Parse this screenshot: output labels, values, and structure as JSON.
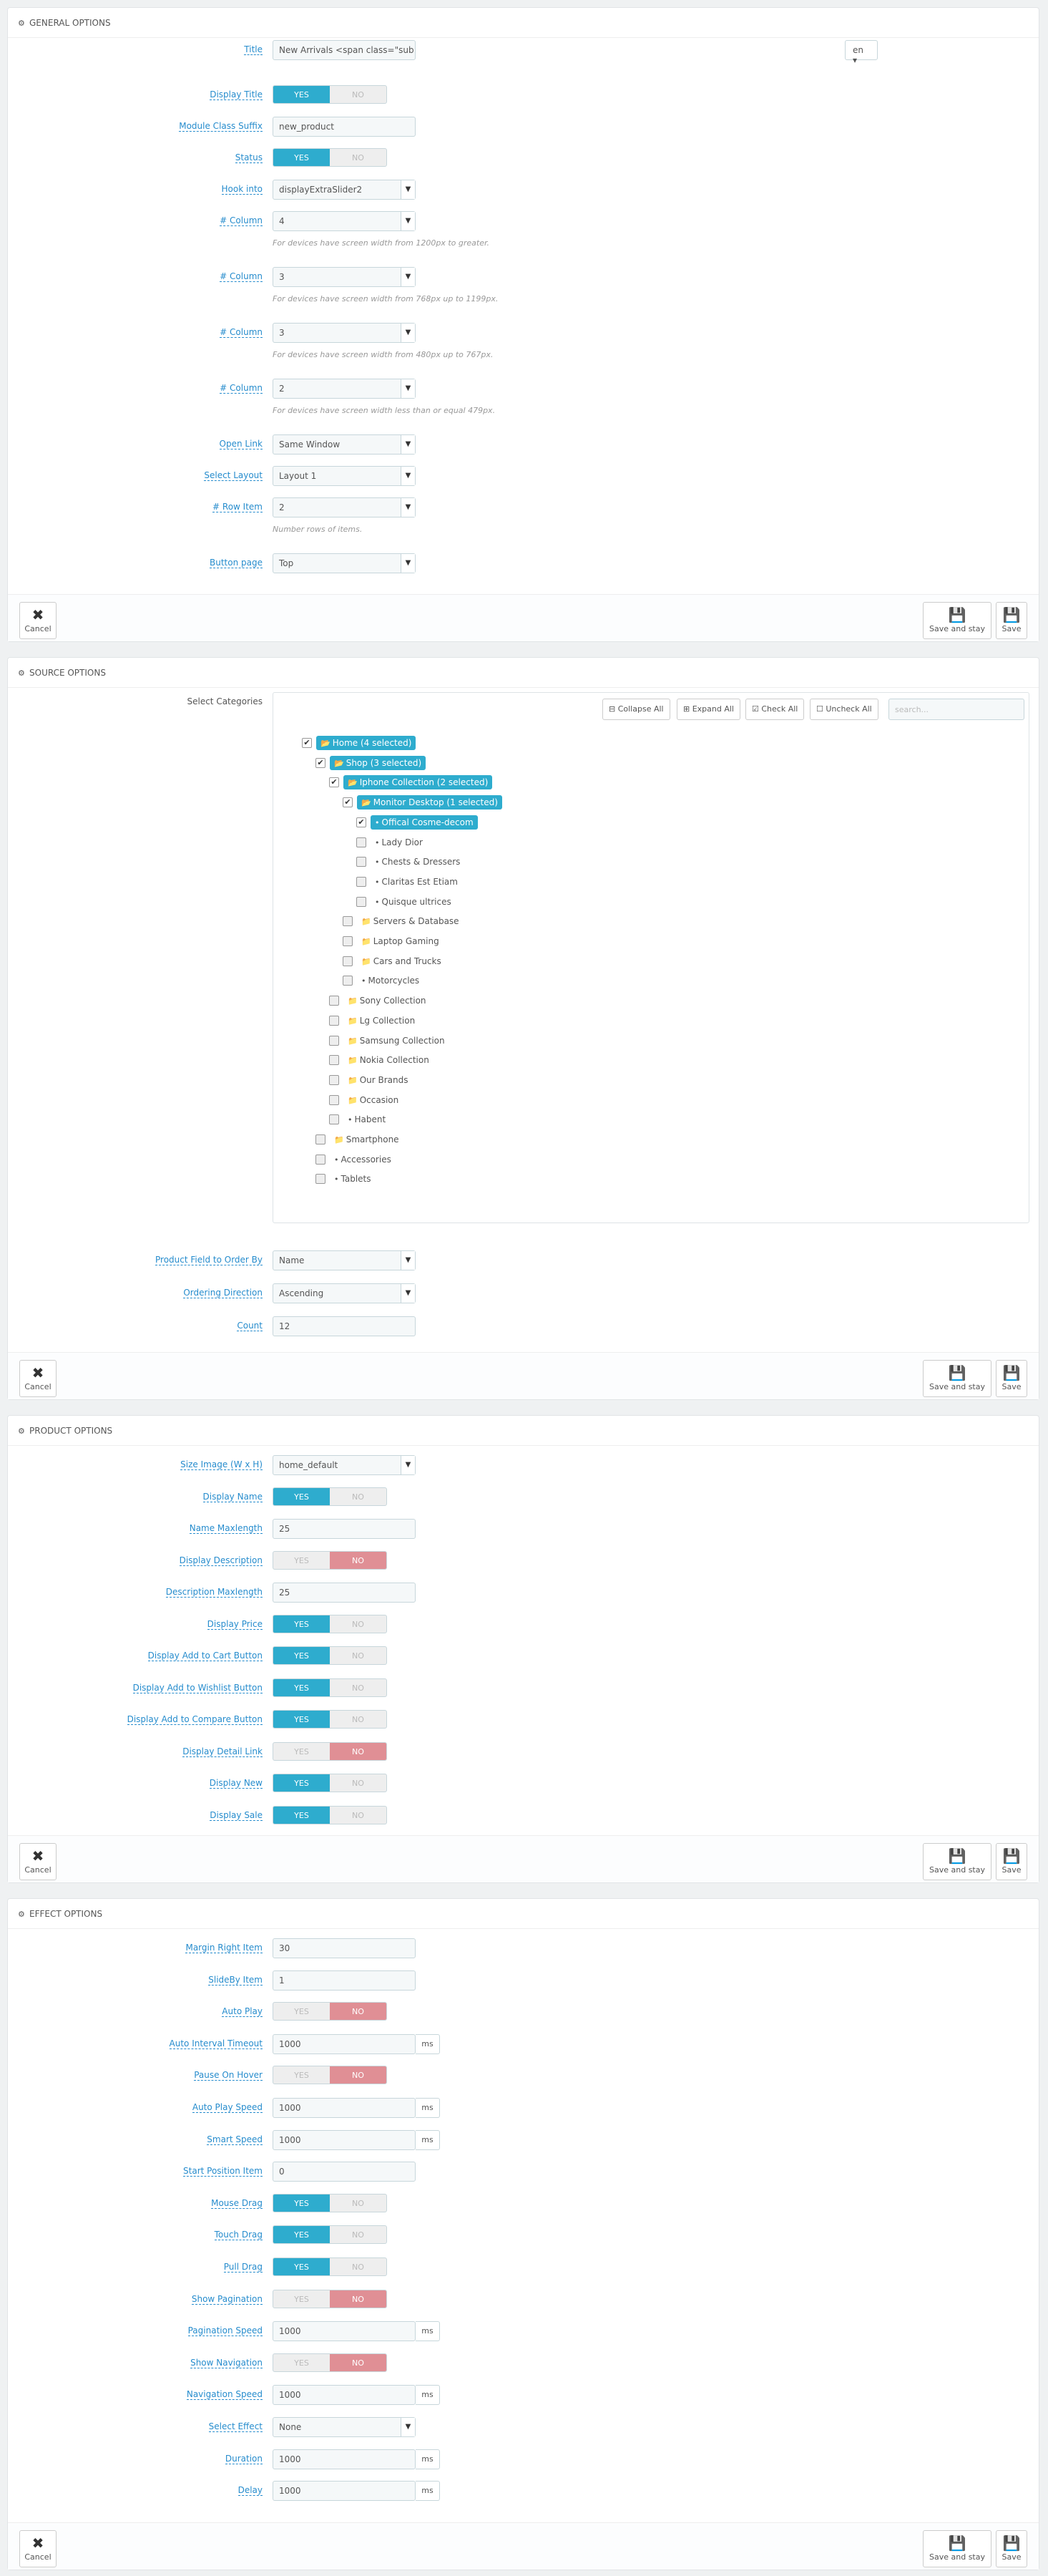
{
  "general": {
    "heading": "GENERAL OPTIONS",
    "lang": "en",
    "title": {
      "label": "Title",
      "value": "New Arrivals <span class=\"sub"
    },
    "display_title": {
      "label": "Display Title",
      "yes": "YES",
      "no": "NO",
      "value": "yes"
    },
    "module_class_suffix": {
      "label": "Module Class Suffix",
      "value": "new_product"
    },
    "status": {
      "label": "Status",
      "yes": "YES",
      "no": "NO",
      "value": "yes"
    },
    "hook_into": {
      "label": "Hook into",
      "value": "displayExtraSlider2"
    },
    "columns": [
      {
        "label": "# Column",
        "value": "4",
        "help": "For devices have screen width from 1200px to greater."
      },
      {
        "label": "# Column",
        "value": "3",
        "help": "For devices have screen width from 768px up to 1199px."
      },
      {
        "label": "# Column",
        "value": "3",
        "help": "For devices have screen width from 480px up to 767px."
      },
      {
        "label": "# Column",
        "value": "2",
        "help": "For devices have screen width less than or equal 479px."
      }
    ],
    "open_link": {
      "label": "Open Link",
      "value": "Same Window"
    },
    "select_layout": {
      "label": "Select Layout",
      "value": "Layout 1"
    },
    "row_item": {
      "label": "# Row Item",
      "value": "2",
      "help": "Number rows of items."
    },
    "button_page": {
      "label": "Button page",
      "value": "Top"
    }
  },
  "buttons": {
    "cancel": "Cancel",
    "save_and_stay": "Save and stay",
    "save": "Save"
  },
  "source": {
    "heading": "SOURCE OPTIONS",
    "select_categories_label": "Select Categories",
    "toolbar": {
      "collapse_all": "Collapse All",
      "expand_all": "Expand All",
      "check_all": "Check All",
      "uncheck_all": "Uncheck All",
      "search_placeholder": "search..."
    },
    "tree": [
      "Home (4 selected)",
      "Shop (3 selected)",
      "Iphone Collection (2 selected)",
      "Monitor Desktop (1 selected)",
      "Offical Cosme-decom",
      "Lady Dior",
      "Chests & Dressers",
      "Claritas Est Etiam",
      "Quisque ultrices",
      "Servers & Database",
      "Laptop Gaming",
      "Cars and Trucks",
      "Motorcycles",
      "Sony Collection",
      "Lg Collection",
      "Samsung Collection",
      "Nokia Collection",
      "Our Brands",
      "Occasion",
      "Habent",
      "Smartphone",
      "Accessories",
      "Tablets"
    ],
    "order_by": {
      "label": "Product Field to Order By",
      "value": "Name"
    },
    "ordering_direction": {
      "label": "Ordering Direction",
      "value": "Ascending"
    },
    "count": {
      "label": "Count",
      "value": "12"
    }
  },
  "product": {
    "heading": "PRODUCT OPTIONS",
    "size_image": {
      "label": "Size Image (W x H)",
      "value": "home_default"
    },
    "display_name": {
      "label": "Display Name",
      "value": "yes"
    },
    "name_maxlength": {
      "label": "Name Maxlength",
      "value": "25"
    },
    "display_description": {
      "label": "Display Description",
      "value": "no"
    },
    "description_maxlength": {
      "label": "Description Maxlength",
      "value": "25"
    },
    "display_price": {
      "label": "Display Price",
      "value": "yes"
    },
    "display_add_to_cart": {
      "label": "Display Add to Cart Button",
      "value": "yes"
    },
    "display_add_to_wishlist": {
      "label": "Display Add to Wishlist Button",
      "value": "yes"
    },
    "display_add_to_compare": {
      "label": "Display Add to Compare Button",
      "value": "yes"
    },
    "display_detail_link": {
      "label": "Display Detail Link",
      "value": "no"
    },
    "display_new": {
      "label": "Display New",
      "value": "yes"
    },
    "display_sale": {
      "label": "Display Sale",
      "value": "yes"
    }
  },
  "effect": {
    "heading": "EFFECT OPTIONS",
    "margin_right_item": {
      "label": "Margin Right Item",
      "value": "30"
    },
    "slideby_item": {
      "label": "SlideBy Item",
      "value": "1"
    },
    "auto_play": {
      "label": "Auto Play",
      "value": "no"
    },
    "auto_interval_timeout": {
      "label": "Auto Interval Timeout",
      "value": "1000",
      "unit": "ms"
    },
    "pause_on_hover": {
      "label": "Pause On Hover",
      "value": "no"
    },
    "auto_play_speed": {
      "label": "Auto Play Speed",
      "value": "1000",
      "unit": "ms"
    },
    "smart_speed": {
      "label": "Smart Speed",
      "value": "1000",
      "unit": "ms"
    },
    "start_position_item": {
      "label": "Start Position Item",
      "value": "0"
    },
    "mouse_drag": {
      "label": "Mouse Drag",
      "value": "yes"
    },
    "touch_drag": {
      "label": "Touch Drag",
      "value": "yes"
    },
    "pull_drag": {
      "label": "Pull Drag",
      "value": "yes"
    },
    "show_pagination": {
      "label": "Show Pagination",
      "value": "no"
    },
    "pagination_speed": {
      "label": "Pagination Speed",
      "value": "1000",
      "unit": "ms"
    },
    "show_navigation": {
      "label": "Show Navigation",
      "value": "no"
    },
    "navigation_speed": {
      "label": "Navigation Speed",
      "value": "1000",
      "unit": "ms"
    },
    "select_effect": {
      "label": "Select Effect",
      "value": "None"
    },
    "duration": {
      "label": "Duration",
      "value": "1000",
      "unit": "ms"
    },
    "delay": {
      "label": "Delay",
      "value": "1000",
      "unit": "ms"
    }
  },
  "switch_labels": {
    "yes": "YES",
    "no": "NO"
  }
}
